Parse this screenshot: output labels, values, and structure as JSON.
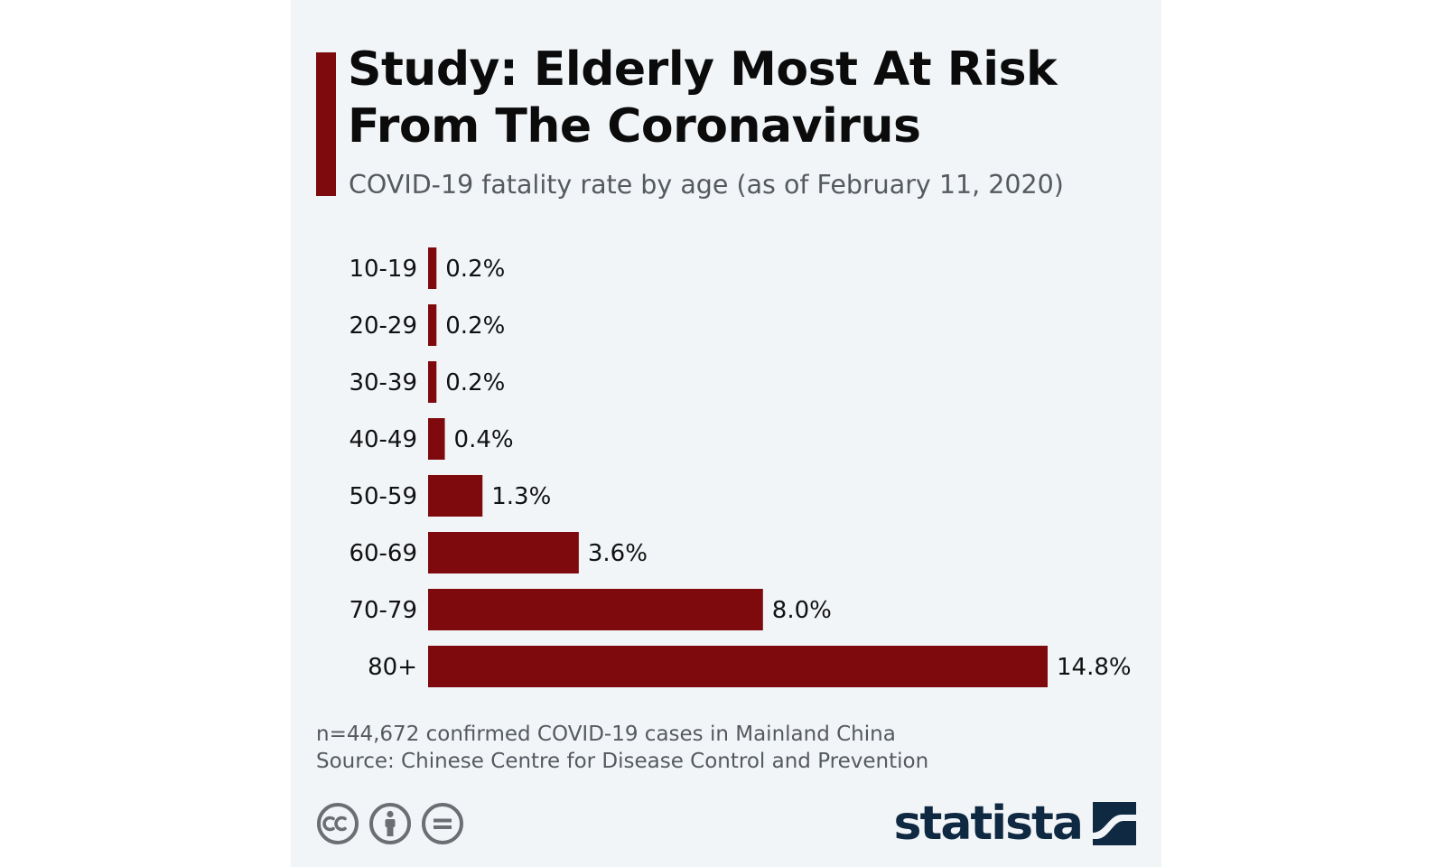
{
  "header": {
    "title": "Study: Elderly Most At Risk From The Coronavirus",
    "subtitle": "COVID-19 fatality rate by age (as of February 11, 2020)"
  },
  "colors": {
    "accent": "#7e0a0d",
    "brand": "#0f2942",
    "text_muted": "#555a60",
    "background": "#f2f5f8"
  },
  "chart_data": {
    "type": "bar",
    "orientation": "horizontal",
    "title": "Study: Elderly Most At Risk From The Coronavirus",
    "subtitle": "COVID-19 fatality rate by age (as of February 11, 2020)",
    "xlabel": "",
    "ylabel": "",
    "categories": [
      "10-19",
      "20-29",
      "30-39",
      "40-49",
      "50-59",
      "60-69",
      "70-79",
      "80+"
    ],
    "values": [
      0.2,
      0.2,
      0.2,
      0.4,
      1.3,
      3.6,
      8.0,
      14.8
    ],
    "value_labels": [
      "0.2%",
      "0.2%",
      "0.2%",
      "0.4%",
      "1.3%",
      "3.6%",
      "8.0%",
      "14.8%"
    ],
    "unit": "%",
    "xlim": [
      0,
      14.8
    ],
    "grid": false,
    "legend": "none"
  },
  "footer": {
    "note": "n=44,672 confirmed COVID-19 cases in Mainland China",
    "source": "Source: Chinese Centre for Disease Control and Prevention",
    "license_icons": [
      "creative-commons-icon",
      "attribution-icon",
      "no-derivatives-icon"
    ],
    "brand_name": "statista"
  }
}
